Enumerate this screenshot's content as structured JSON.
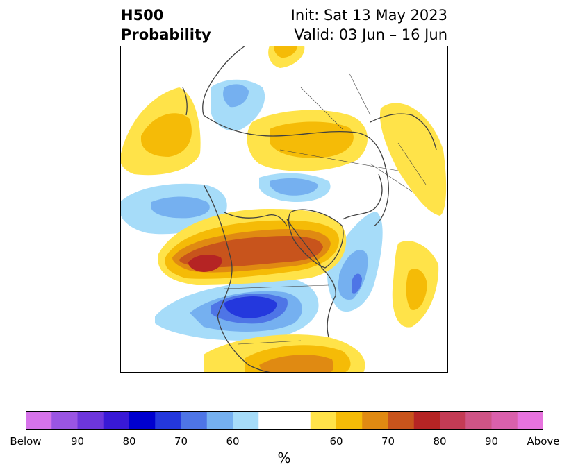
{
  "title": {
    "line1": "H500",
    "line2": "Probability",
    "init": "Init: Sat 13 May 2023",
    "valid": "Valid: 03 Jun – 16 Jun"
  },
  "colorbar": {
    "colors": [
      "#d673ea",
      "#9a55e3",
      "#6d36dc",
      "#3919d6",
      "#0000cf",
      "#2438dd",
      "#4e75e6",
      "#75b0f0",
      "#a6dcf9",
      "#ffffff",
      "#ffffff",
      "#ffe349",
      "#f5bb07",
      "#e08a12",
      "#c8541c",
      "#b52424",
      "#c43b55",
      "#cf5486",
      "#da60ac",
      "#e773de"
    ],
    "ticks": [
      "Below",
      "90",
      "80",
      "70",
      "60",
      "60",
      "70",
      "80",
      "90",
      "Above"
    ],
    "unit": "%"
  },
  "legend_colors": {
    "below_light": "#a6dcf9",
    "below_mid": "#75b0f0",
    "below_strong": "#4e75e6",
    "below_stronger": "#2438dd",
    "above_light": "#ffe349",
    "above_mid": "#f5bb07",
    "above_strong": "#e08a12",
    "above_stronger": "#c8541c",
    "above_max": "#b52424"
  }
}
